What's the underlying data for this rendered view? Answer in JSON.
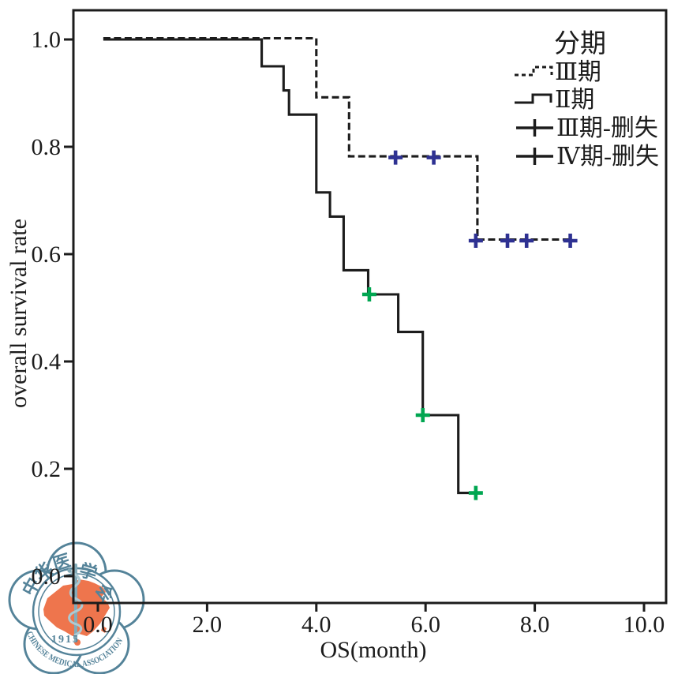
{
  "chart_data": {
    "type": "line",
    "subtype": "kaplan-meier-step-survival",
    "title": "",
    "xlabel": "OS(month)",
    "ylabel": "overall survival rate",
    "xlim": [
      0,
      10.4
    ],
    "ylim": [
      0,
      1.05
    ],
    "grid": false,
    "xticks": {
      "values": [
        0,
        2,
        4,
        6,
        8,
        10
      ],
      "labels": [
        "0.0",
        "2.0",
        "4.0",
        "6.0",
        "8.0",
        "10.0"
      ]
    },
    "yticks": {
      "values": [
        0,
        0.2,
        0.4,
        0.6,
        0.8,
        1.0
      ],
      "labels": [
        "0.0",
        "0.2",
        "0.4",
        "0.6",
        "0.8",
        "1.0"
      ]
    },
    "legend_position": "top-right-inside",
    "legend_title": "分期",
    "series": [
      {
        "name": "Ⅲ期",
        "type": "step",
        "line_style": "dashed",
        "color": "#1c1c1c",
        "points": [
          [
            0.1,
            1.0
          ],
          [
            4.0,
            1.0
          ],
          [
            4.0,
            0.89
          ],
          [
            4.6,
            0.89
          ],
          [
            4.6,
            0.78
          ],
          [
            6.95,
            0.78
          ],
          [
            6.95,
            0.625
          ],
          [
            8.65,
            0.625
          ]
        ]
      },
      {
        "name": "Ⅱ期",
        "type": "step",
        "line_style": "solid",
        "color": "#1c1c1c",
        "points": [
          [
            0.1,
            1.0
          ],
          [
            3.0,
            1.0
          ],
          [
            3.0,
            0.95
          ],
          [
            3.4,
            0.95
          ],
          [
            3.4,
            0.905
          ],
          [
            3.5,
            0.905
          ],
          [
            3.5,
            0.86
          ],
          [
            4.0,
            0.86
          ],
          [
            4.0,
            0.715
          ],
          [
            4.25,
            0.715
          ],
          [
            4.25,
            0.67
          ],
          [
            4.5,
            0.67
          ],
          [
            4.5,
            0.57
          ],
          [
            4.95,
            0.57
          ],
          [
            4.95,
            0.525
          ],
          [
            5.5,
            0.525
          ],
          [
            5.5,
            0.455
          ],
          [
            5.95,
            0.455
          ],
          [
            5.95,
            0.3
          ],
          [
            6.6,
            0.3
          ],
          [
            6.6,
            0.155
          ],
          [
            6.9,
            0.155
          ]
        ]
      },
      {
        "name": "Ⅲ期-删失",
        "type": "censor",
        "marker": "plus",
        "color": "#2e3192",
        "points": [
          [
            5.45,
            0.78
          ],
          [
            6.15,
            0.78
          ],
          [
            6.92,
            0.625
          ],
          [
            7.5,
            0.625
          ],
          [
            7.85,
            0.625
          ],
          [
            8.65,
            0.625
          ]
        ]
      },
      {
        "name": "Ⅳ期-删失",
        "type": "censor",
        "marker": "plus",
        "color": "#00a651",
        "points": [
          [
            4.97,
            0.525
          ],
          [
            5.95,
            0.3
          ],
          [
            6.92,
            0.155
          ]
        ]
      }
    ]
  },
  "watermark": {
    "org_arc_text": "CHINESE MEDICAL ASSOCIATION",
    "year": "1915",
    "ring_chars": [
      "中",
      "华",
      "医",
      "学",
      "会"
    ],
    "colors": {
      "ring": "#4e7e95",
      "map": "#ee7046",
      "staff": "#7fa8b6"
    }
  }
}
